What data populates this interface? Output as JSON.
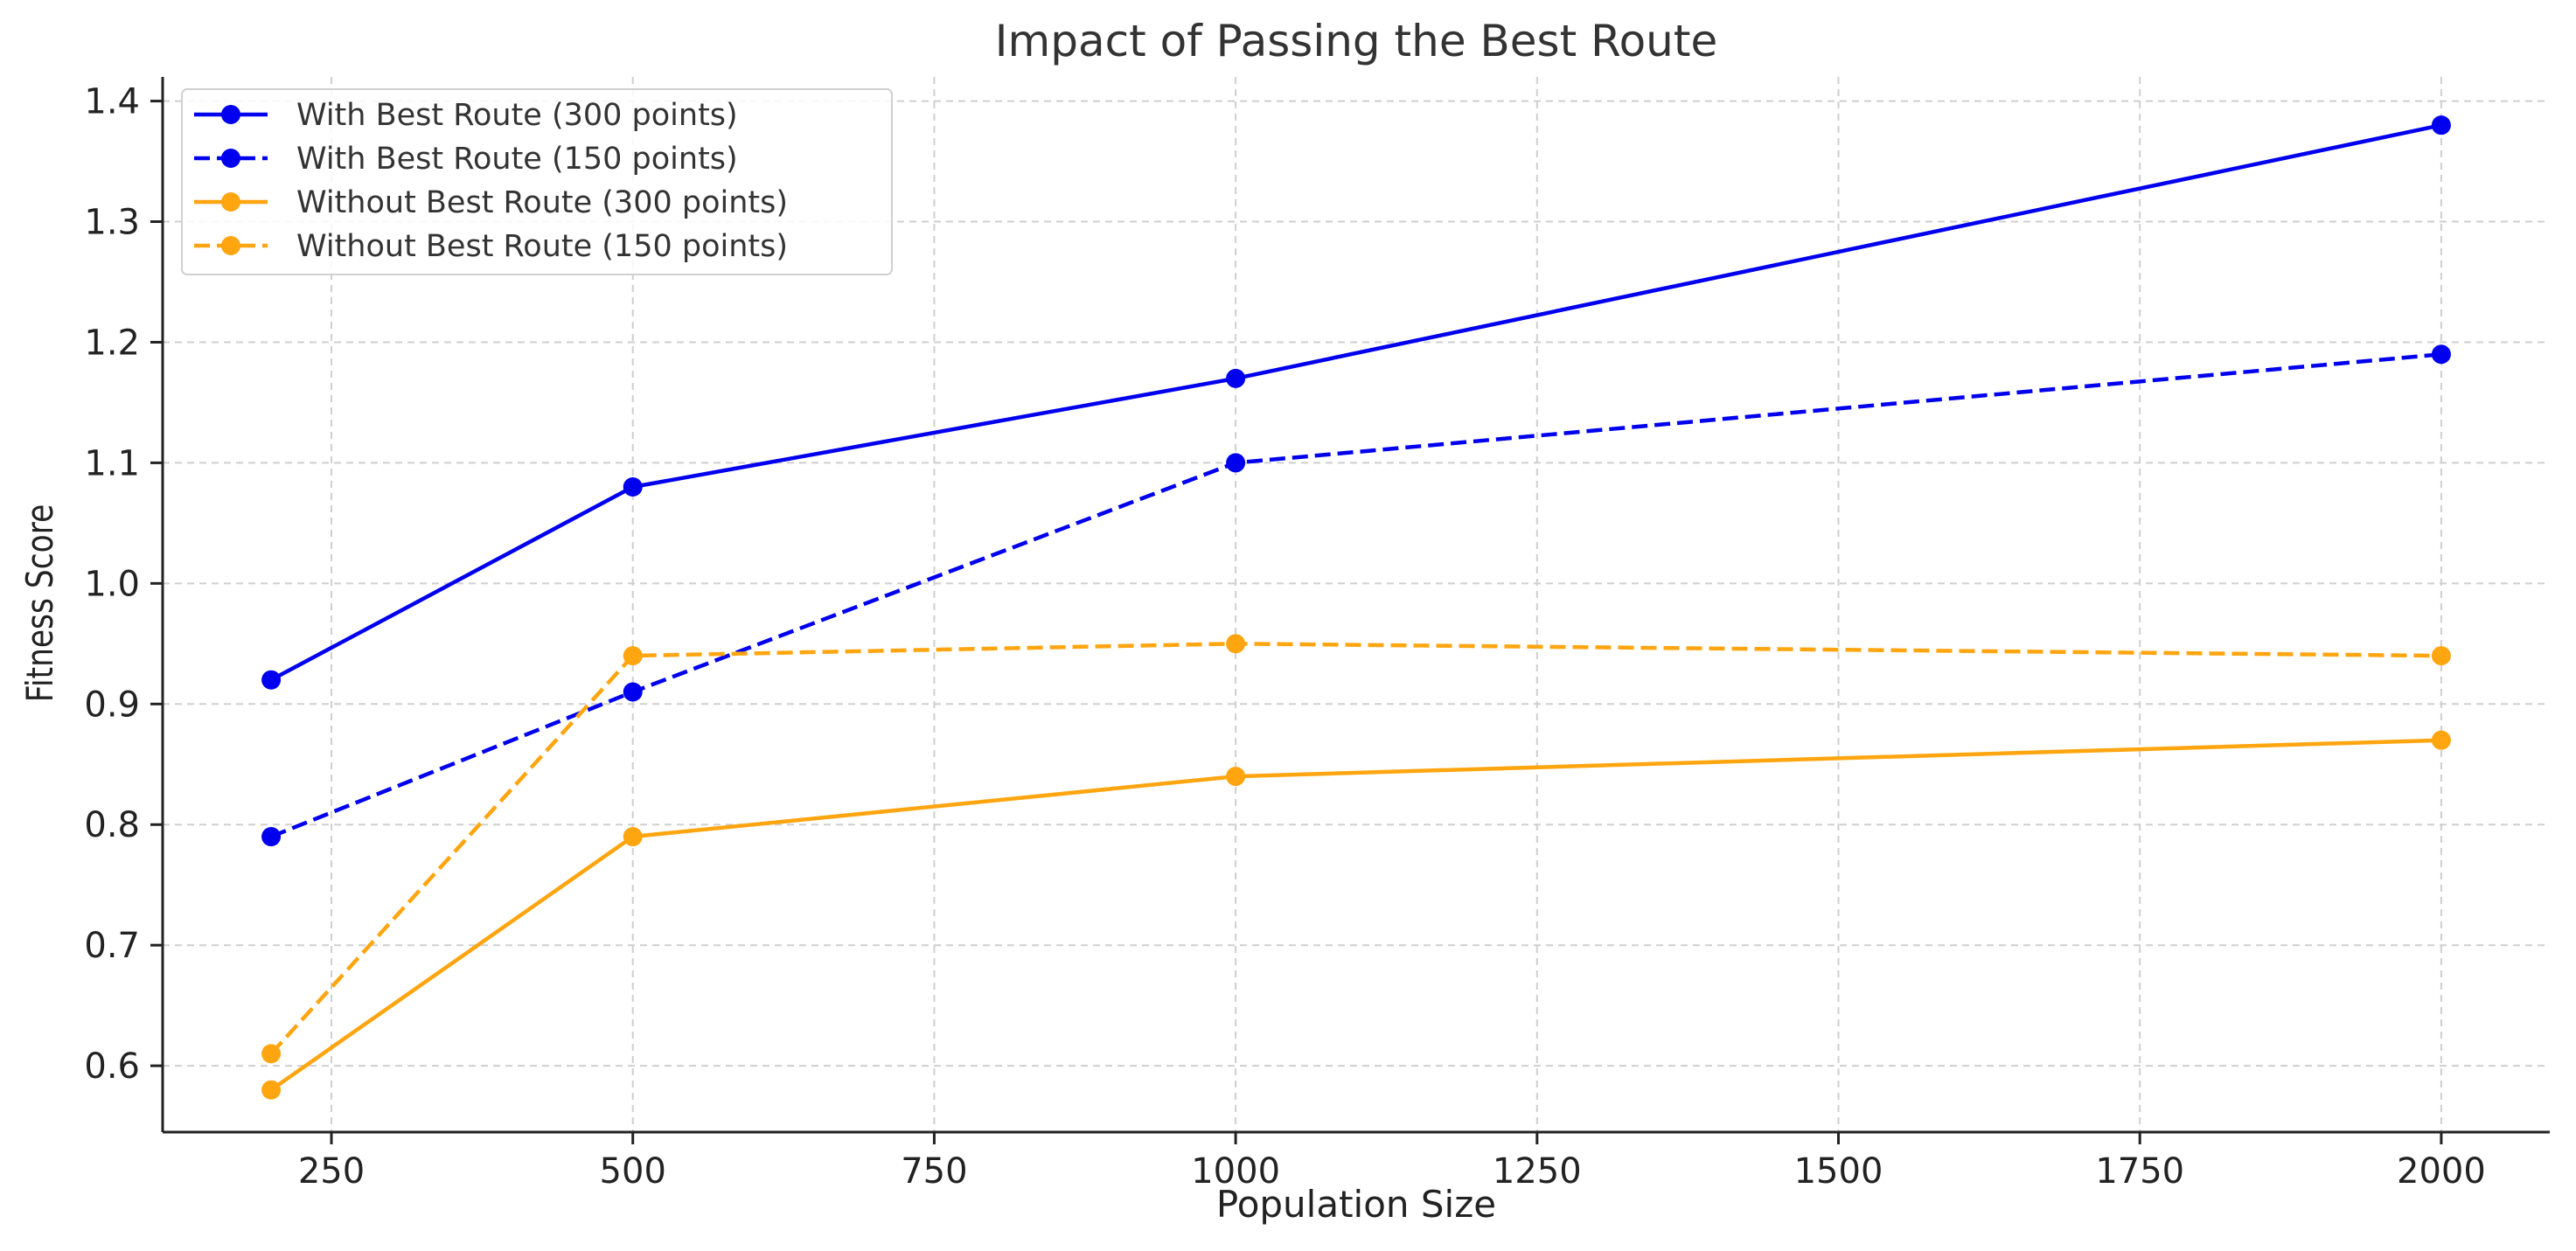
{
  "chart_data": {
    "type": "line",
    "title": "Impact of Passing the Best Route",
    "xlabel": "Population Size",
    "ylabel": "Fitness Score",
    "x": [
      200,
      500,
      1000,
      2000
    ],
    "xlim": [
      110,
      2090
    ],
    "ylim": [
      0.545,
      1.42
    ],
    "xticks": [
      250,
      500,
      750,
      1000,
      1250,
      1500,
      1750,
      2000
    ],
    "xtick_labels": [
      "250",
      "500",
      "750",
      "1000",
      "1250",
      "1500",
      "1750",
      "2000"
    ],
    "yticks": [
      0.6,
      0.7,
      0.8,
      0.9,
      1.0,
      1.1,
      1.2,
      1.3,
      1.4
    ],
    "ytick_labels": [
      "0.6",
      "0.7",
      "0.8",
      "0.9",
      "1.0",
      "1.1",
      "1.2",
      "1.3",
      "1.4"
    ],
    "grid": true,
    "legend_position": "top-left",
    "series": [
      {
        "name": "With Best Route (300 points)",
        "values": [
          0.92,
          1.08,
          1.17,
          1.38
        ],
        "color": "#0000ee",
        "dashed": false
      },
      {
        "name": "With Best Route (150 points)",
        "values": [
          0.79,
          0.91,
          1.1,
          1.19
        ],
        "color": "#0000ee",
        "dashed": true
      },
      {
        "name": "Without Best Route (300 points)",
        "values": [
          0.58,
          0.79,
          0.84,
          0.87
        ],
        "color": "#ffa510",
        "dashed": false
      },
      {
        "name": "Without Best Route (150 points)",
        "values": [
          0.61,
          0.94,
          0.95,
          0.94
        ],
        "color": "#ffa510",
        "dashed": true
      }
    ]
  }
}
